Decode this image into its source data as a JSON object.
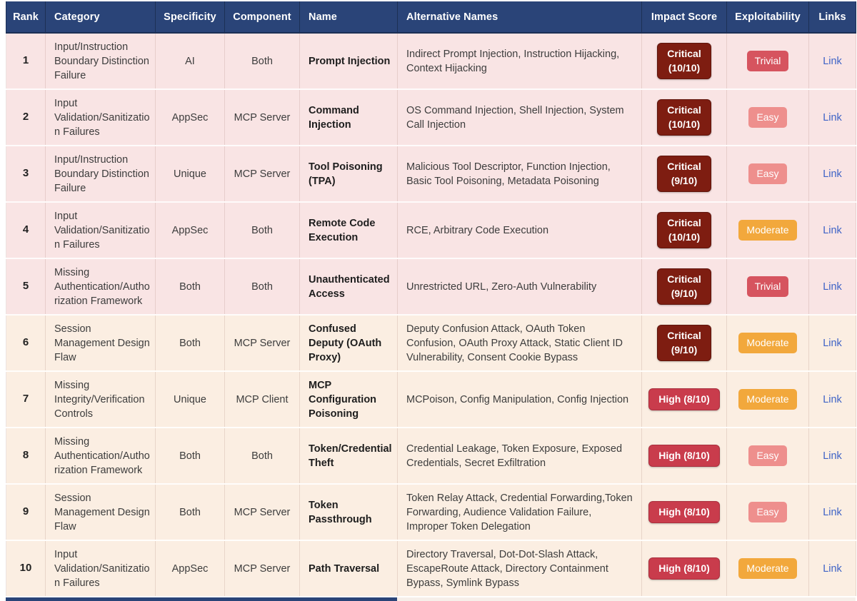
{
  "colors": {
    "header_bg": "#2a4478",
    "row_top5_bg": "#f9e4e4",
    "row_6to10_bg": "#fbeee2",
    "critical_badge": "#7e1d11",
    "high_badge": "#c93c4c",
    "trivial_badge": "#d6545f",
    "easy_badge": "#ee8f8d",
    "moderate_badge": "#f2a83c",
    "link_text": "#3e63c6"
  },
  "table": {
    "columns": [
      {
        "label": "Rank"
      },
      {
        "label": "Category"
      },
      {
        "label": "Specificity"
      },
      {
        "label": "Component"
      },
      {
        "label": "Name"
      },
      {
        "label": "Alternative Names"
      },
      {
        "label": "Impact Score"
      },
      {
        "label": "Exploitability"
      },
      {
        "label": "Links"
      }
    ],
    "rows": [
      {
        "rank": "1",
        "category": "Input/Instruction Boundary Distinction Failure",
        "specificity": "AI",
        "component": "Both",
        "name": "Prompt Injection",
        "alt_names": "Indirect Prompt Injection, Instruction Hijacking, Context Hijacking",
        "impact": {
          "label": "Critical\n(10/10)",
          "severity": "critical"
        },
        "exploitability": {
          "label": "Trivial",
          "level": "trivial"
        },
        "link": {
          "label": "Link"
        }
      },
      {
        "rank": "2",
        "category": "Input Validation/Sanitization Failures",
        "specificity": "AppSec",
        "component": "MCP Server",
        "name": "Command Injection",
        "alt_names": "OS Command Injection, Shell Injection, System Call Injection",
        "impact": {
          "label": "Critical\n(10/10)",
          "severity": "critical"
        },
        "exploitability": {
          "label": "Easy",
          "level": "easy"
        },
        "link": {
          "label": "Link"
        }
      },
      {
        "rank": "3",
        "category": "Input/Instruction Boundary Distinction Failure",
        "specificity": "Unique",
        "component": "MCP Server",
        "name": "Tool Poisoning (TPA)",
        "alt_names": "Malicious Tool Descriptor, Function Injection, Basic Tool Poisoning, Metadata Poisoning",
        "impact": {
          "label": "Critical\n(9/10)",
          "severity": "critical"
        },
        "exploitability": {
          "label": "Easy",
          "level": "easy"
        },
        "link": {
          "label": "Link"
        }
      },
      {
        "rank": "4",
        "category": "Input Validation/Sanitization Failures",
        "specificity": "AppSec",
        "component": "Both",
        "name": "Remote Code Execution",
        "alt_names": "RCE, Arbitrary Code Execution",
        "impact": {
          "label": "Critical\n(10/10)",
          "severity": "critical"
        },
        "exploitability": {
          "label": "Moderate",
          "level": "moderate"
        },
        "link": {
          "label": "Link"
        }
      },
      {
        "rank": "5",
        "category": "Missing Authentication/Authorization Framework",
        "specificity": "Both",
        "component": "Both",
        "name": "Unauthenticated Access",
        "alt_names": "Unrestricted URL, Zero-Auth Vulnerability",
        "impact": {
          "label": "Critical\n(9/10)",
          "severity": "critical"
        },
        "exploitability": {
          "label": "Trivial",
          "level": "trivial"
        },
        "link": {
          "label": "Link"
        }
      },
      {
        "rank": "6",
        "category": "Session Management Design Flaw",
        "specificity": "Both",
        "component": "MCP Server",
        "name": "Confused Deputy (OAuth Proxy)",
        "alt_names": "Deputy Confusion Attack, OAuth Token Confusion, OAuth Proxy Attack, Static Client ID Vulnerability, Consent Cookie Bypass",
        "impact": {
          "label": "Critical\n(9/10)",
          "severity": "critical"
        },
        "exploitability": {
          "label": "Moderate",
          "level": "moderate"
        },
        "link": {
          "label": "Link"
        }
      },
      {
        "rank": "7",
        "category": "Missing Integrity/Verification Controls",
        "specificity": "Unique",
        "component": "MCP Client",
        "name": "MCP Configuration Poisoning",
        "alt_names": "MCPoison, Config Manipulation, Config Injection",
        "impact": {
          "label": "High (8/10)",
          "severity": "high"
        },
        "exploitability": {
          "label": "Moderate",
          "level": "moderate"
        },
        "link": {
          "label": "Link"
        }
      },
      {
        "rank": "8",
        "category": "Missing Authentication/Authorization Framework",
        "specificity": "Both",
        "component": "Both",
        "name": "Token/Credential Theft",
        "alt_names": "Credential Leakage, Token Exposure, Exposed Credentials, Secret Exfiltration",
        "impact": {
          "label": "High (8/10)",
          "severity": "high"
        },
        "exploitability": {
          "label": "Easy",
          "level": "easy"
        },
        "link": {
          "label": "Link"
        }
      },
      {
        "rank": "9",
        "category": "Session Management Design Flaw",
        "specificity": "Both",
        "component": "MCP Server",
        "name": "Token Passthrough",
        "alt_names": "Token Relay Attack, Credential Forwarding,Token Forwarding, Audience Validation Failure, Improper Token Delegation",
        "impact": {
          "label": "High (8/10)",
          "severity": "high"
        },
        "exploitability": {
          "label": "Easy",
          "level": "easy"
        },
        "link": {
          "label": "Link"
        }
      },
      {
        "rank": "10",
        "category": "Input Validation/Sanitization Failures",
        "specificity": "AppSec",
        "component": "MCP Server",
        "name": "Path Traversal",
        "alt_names": "Directory Traversal, Dot-Dot-Slash Attack, EscapeRoute Attack, Directory Containment Bypass, Symlink Bypass",
        "impact": {
          "label": "High (8/10)",
          "severity": "high"
        },
        "exploitability": {
          "label": "Moderate",
          "level": "moderate"
        },
        "link": {
          "label": "Link"
        }
      }
    ]
  }
}
